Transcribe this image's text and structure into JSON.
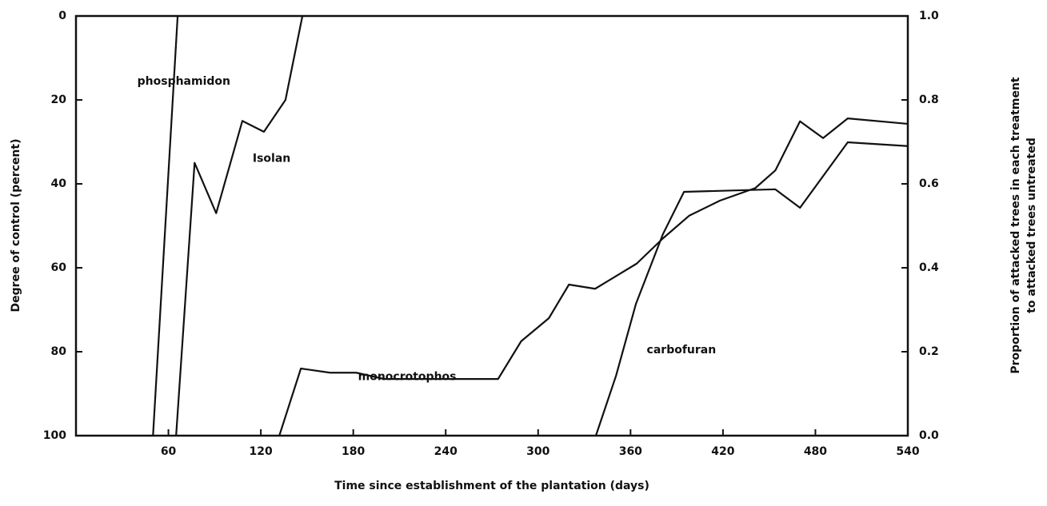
{
  "chart_data": {
    "type": "line",
    "xlabel": "Time since establishment of the plantation (days)",
    "ylabel": "Degree of control (percent)",
    "y2label": [
      "Proportion of attacked trees in each treatment",
      "to attacked trees untreated"
    ],
    "xlim": [
      0,
      540
    ],
    "xticks": [
      60,
      120,
      180,
      240,
      300,
      360,
      420,
      480,
      540
    ],
    "ylim": [
      100,
      0
    ],
    "yticks": [
      0,
      20,
      40,
      60,
      80,
      100
    ],
    "y2lim": [
      0,
      1
    ],
    "y2ticks": [
      {
        "value": 0,
        "label": "0.0"
      },
      0.2,
      0.4,
      0.6,
      0.8,
      {
        "value": 1,
        "label": "1.0"
      }
    ],
    "series": [
      {
        "name": "phosphamidon",
        "color": "#111111",
        "x": [
          50,
          66
        ],
        "values": [
          100,
          0
        ]
      },
      {
        "name": "Isolan",
        "color": "#111111",
        "x": [
          65,
          77,
          91,
          108,
          122,
          136,
          147
        ],
        "values": [
          100,
          35,
          47,
          25,
          27.6,
          20,
          0
        ]
      },
      {
        "name": "monocrotophos",
        "color": "#111111",
        "x": [
          132,
          146,
          165,
          182,
          200,
          221,
          274,
          289,
          307,
          320,
          337,
          364,
          381,
          398,
          418,
          441,
          454,
          470,
          485,
          501,
          540
        ],
        "values": [
          100,
          84,
          85,
          85,
          86.5,
          86.5,
          86.5,
          77.5,
          72,
          64,
          65,
          59,
          53,
          47.6,
          44,
          41,
          36.8,
          25.1,
          29.1,
          24.4,
          25.7
        ]
      },
      {
        "name": "carbofuran",
        "color": "#111111",
        "x": [
          337.5,
          350.6,
          363.5,
          381,
          394.7,
          454,
          470,
          501,
          540
        ],
        "values": [
          100,
          85.7,
          68.6,
          52,
          41.9,
          41.3,
          45.7,
          30.1,
          31
        ]
      }
    ]
  }
}
